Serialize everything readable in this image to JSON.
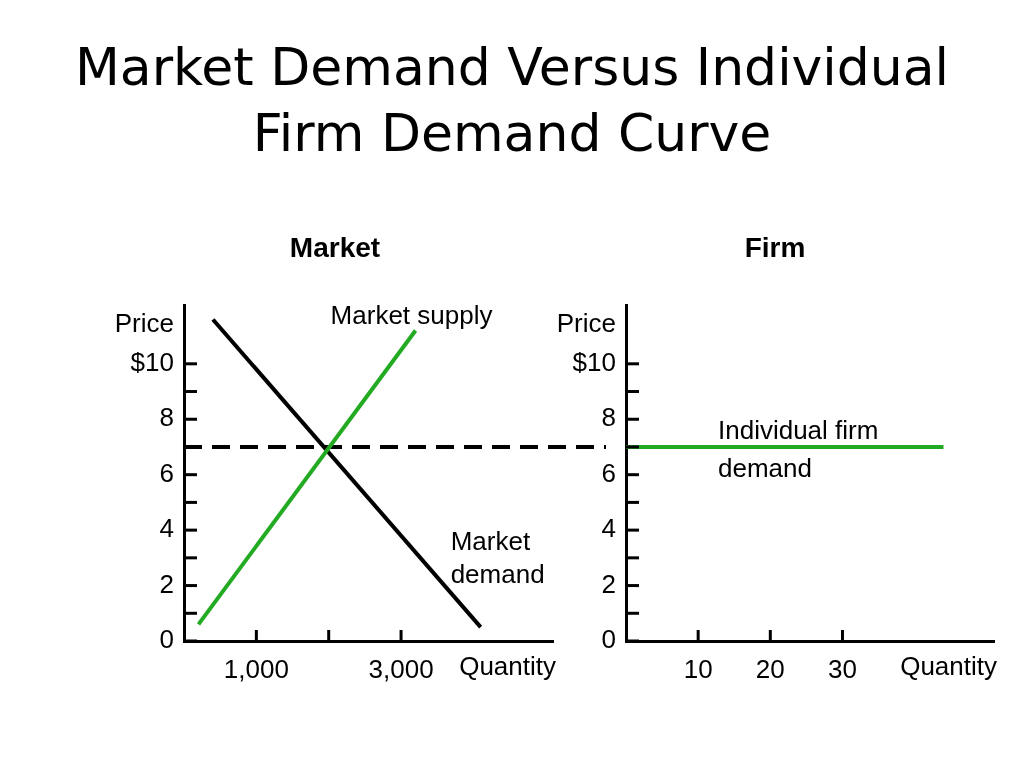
{
  "chart_data": [
    {
      "type": "line",
      "title": "Market Demand Versus Individual Firm Demand Curve",
      "subtitle": "Market",
      "xlabel": "Quantity",
      "ylabel": "Price",
      "xlim": [
        0,
        5100
      ],
      "xticks": [
        {
          "value": 1000,
          "label": "1,000"
        },
        {
          "value": 2000,
          "label": null
        },
        {
          "value": 3000,
          "label": "3,000"
        }
      ],
      "ylim": [
        0,
        12.1
      ],
      "yticks": [
        0,
        {
          "value": 1,
          "label": null
        },
        2,
        {
          "value": 3,
          "label": null
        },
        4,
        {
          "value": 5,
          "label": null
        },
        6,
        {
          "value": 7,
          "label": null
        },
        8,
        {
          "value": 9,
          "label": null
        },
        {
          "value": 10,
          "label": "$10"
        }
      ],
      "series": [
        {
          "name": "Market supply",
          "color": "#22aa22",
          "x": [
            200,
            3200
          ],
          "values": [
            0.6,
            11.2
          ]
        },
        {
          "name": "Market demand",
          "color": "#000000",
          "x": [
            400,
            4100
          ],
          "values": [
            11.6,
            0.5
          ]
        }
      ],
      "ref_lines": [
        {
          "axis": "y",
          "value": 7,
          "color": "#000000",
          "line_style": "dashed"
        }
      ]
    },
    {
      "type": "line",
      "subtitle": "Firm",
      "xlabel": "Quantity",
      "ylabel": "Price",
      "xlim": [
        0,
        51
      ],
      "xticks": [
        10,
        20,
        30
      ],
      "ylim": [
        0,
        12.1
      ],
      "yticks": [
        0,
        {
          "value": 1,
          "label": null
        },
        2,
        {
          "value": 3,
          "label": null
        },
        4,
        {
          "value": 5,
          "label": null
        },
        6,
        {
          "value": 7,
          "label": null
        },
        8,
        {
          "value": 9,
          "label": null
        },
        {
          "value": 10,
          "label": "$10"
        }
      ],
      "series": [
        {
          "name": "Individual firm demand",
          "color": "#22aa22",
          "x": [
            0,
            44
          ],
          "values": [
            7,
            7
          ]
        }
      ]
    }
  ]
}
